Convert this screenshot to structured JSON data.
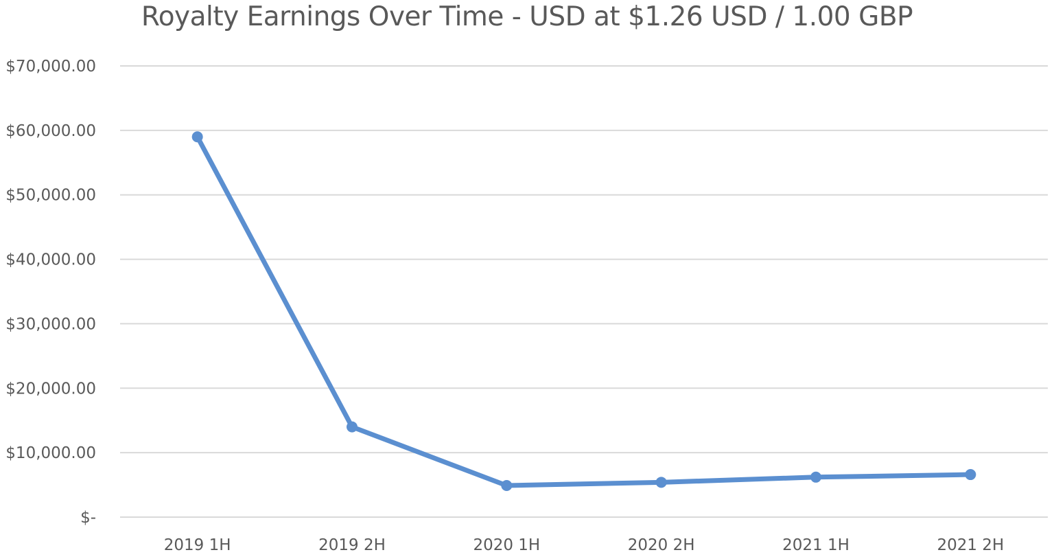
{
  "chart_data": {
    "type": "line",
    "title": "Royalty Earnings Over Time - USD at $1.26 USD / 1.00 GBP",
    "xlabel": "",
    "ylabel": "",
    "categories": [
      "2019 1H",
      "2019 2H",
      "2020 1H",
      "2020 2H",
      "2021 1H",
      "2021 2H"
    ],
    "series": [
      {
        "values": [
          59000,
          14000,
          4900,
          5400,
          6200,
          6600
        ]
      }
    ],
    "ylim": [
      0,
      70000
    ],
    "yticks": [
      0,
      10000,
      20000,
      30000,
      40000,
      50000,
      60000,
      70000
    ],
    "ytick_labels": [
      "$-",
      "$10,000.00",
      "$20,000.00",
      "$30,000.00",
      "$40,000.00",
      "$50,000.00",
      "$60,000.00",
      "$70,000.00"
    ],
    "grid": true,
    "legend": "none",
    "colors": {
      "line": "#5b8fd0",
      "grid": "#d9d9d9",
      "text": "#595959"
    }
  }
}
